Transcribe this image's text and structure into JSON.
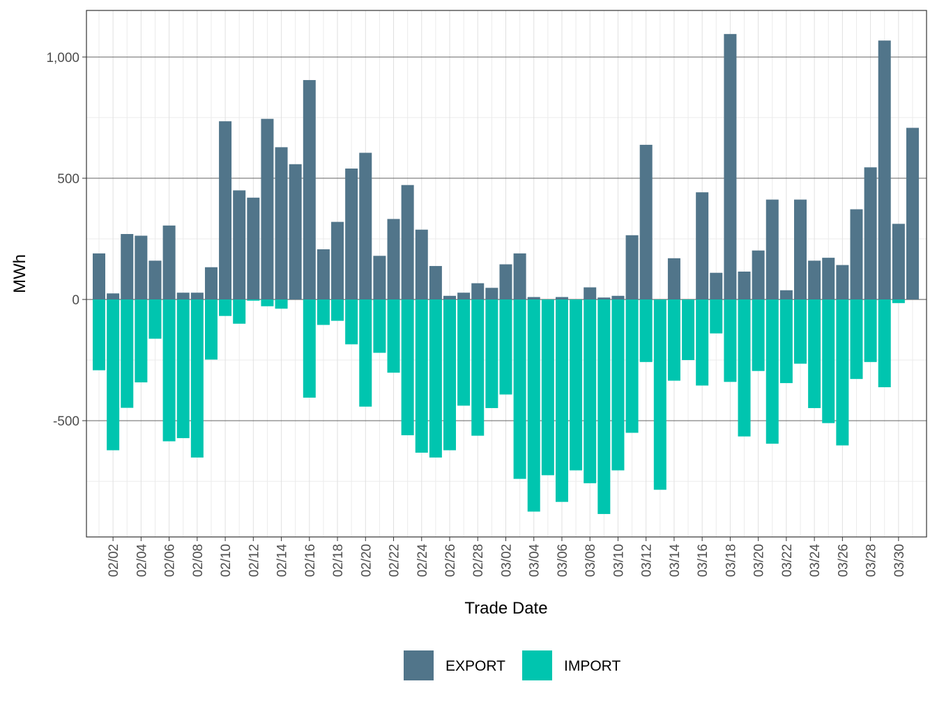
{
  "chart_data": {
    "type": "bar",
    "stacked": "diverging",
    "xlabel": "Trade Date",
    "ylabel": "MWh",
    "ylim": [
      -975,
      1200
    ],
    "y_ticks": [
      -500,
      0,
      500,
      1000
    ],
    "y_tick_labels": [
      "-500",
      "0",
      "500",
      "1,000"
    ],
    "grid": true,
    "legend": "bottom",
    "categories": [
      "02/01",
      "02/02",
      "02/03",
      "02/04",
      "02/05",
      "02/06",
      "02/07",
      "02/08",
      "02/09",
      "02/10",
      "02/11",
      "02/12",
      "02/13",
      "02/14",
      "02/15",
      "02/16",
      "02/17",
      "02/18",
      "02/19",
      "02/20",
      "02/21",
      "02/22",
      "02/23",
      "02/24",
      "02/25",
      "02/26",
      "02/27",
      "02/28",
      "03/01",
      "03/02",
      "03/03",
      "03/04",
      "03/05",
      "03/06",
      "03/07",
      "03/08",
      "03/09",
      "03/10",
      "03/11",
      "03/12",
      "03/13",
      "03/14",
      "03/15",
      "03/16",
      "03/17",
      "03/18",
      "03/19",
      "03/20",
      "03/21",
      "03/22",
      "03/23",
      "03/24",
      "03/25",
      "03/26",
      "03/27",
      "03/28",
      "03/29",
      "03/30",
      "03/31"
    ],
    "x_tick_labels": [
      "02/02",
      "02/04",
      "02/06",
      "02/08",
      "02/10",
      "02/12",
      "02/14",
      "02/16",
      "02/18",
      "02/20",
      "02/22",
      "02/24",
      "02/26",
      "02/28",
      "03/02",
      "03/04",
      "03/06",
      "03/08",
      "03/10",
      "03/12",
      "03/14",
      "03/16",
      "03/18",
      "03/20",
      "03/22",
      "03/24",
      "03/26",
      "03/28",
      "03/30"
    ],
    "series": [
      {
        "name": "EXPORT",
        "color": "#51758A",
        "values": [
          190,
          25,
          270,
          263,
          160,
          305,
          28,
          28,
          133,
          735,
          450,
          420,
          745,
          628,
          558,
          905,
          207,
          320,
          540,
          605,
          180,
          332,
          472,
          288,
          138,
          15,
          28,
          67,
          48,
          145,
          190,
          10,
          0,
          10,
          0,
          50,
          8,
          15,
          265,
          638,
          0,
          170,
          0,
          442,
          110,
          1095,
          115,
          202,
          412,
          38,
          412,
          160,
          172,
          142,
          372,
          545,
          1068,
          312,
          708
        ]
      },
      {
        "name": "IMPORT",
        "color": "#00C5AF",
        "values": [
          -292,
          -622,
          -447,
          -342,
          -162,
          -585,
          -572,
          -652,
          -248,
          -68,
          -100,
          -5,
          -28,
          -38,
          0,
          -405,
          -105,
          -88,
          -185,
          -442,
          -220,
          -302,
          -560,
          -632,
          -652,
          -622,
          -438,
          -562,
          -448,
          -392,
          -740,
          -875,
          -725,
          -835,
          -705,
          -758,
          -885,
          -705,
          -550,
          -258,
          -785,
          -335,
          -250,
          -355,
          -140,
          -340,
          -565,
          -295,
          -595,
          -345,
          -265,
          -448,
          -510,
          -602,
          -328,
          -258,
          -362,
          -15,
          0
        ]
      }
    ]
  }
}
